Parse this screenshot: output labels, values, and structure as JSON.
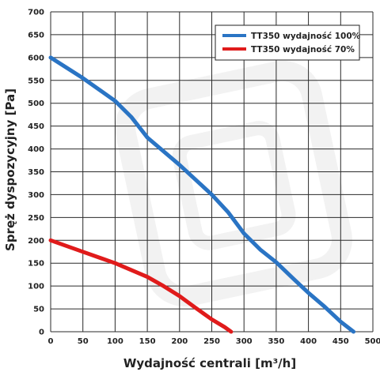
{
  "chart_data": {
    "type": "line",
    "xlabel": "Wydajność centrali [m³/h]",
    "ylabel": "Spręż dyspozycyjny [Pa]",
    "xlim": [
      0,
      500
    ],
    "ylim": [
      0,
      700
    ],
    "x_ticks": [
      "0",
      "50",
      "100",
      "150",
      "200",
      "250",
      "300",
      "350",
      "400",
      "450",
      "500"
    ],
    "y_ticks": [
      "0",
      "50",
      "100",
      "150",
      "200",
      "250",
      "300",
      "350",
      "400",
      "450",
      "500",
      "550",
      "600",
      "650",
      "700"
    ],
    "grid": true,
    "legend_position": "top-right",
    "series": [
      {
        "name": "TT350 wydajność 100%",
        "color": "#2a74c4",
        "points": [
          [
            0,
            600
          ],
          [
            50,
            555
          ],
          [
            100,
            505
          ],
          [
            125,
            470
          ],
          [
            150,
            425
          ],
          [
            200,
            365
          ],
          [
            250,
            300
          ],
          [
            275,
            262
          ],
          [
            300,
            215
          ],
          [
            325,
            180
          ],
          [
            350,
            152
          ],
          [
            375,
            118
          ],
          [
            400,
            85
          ],
          [
            425,
            55
          ],
          [
            450,
            22
          ],
          [
            470,
            0
          ]
        ]
      },
      {
        "name": "TT350 wydajność 70%",
        "color": "#e01b1b",
        "points": [
          [
            0,
            200
          ],
          [
            50,
            175
          ],
          [
            100,
            150
          ],
          [
            150,
            120
          ],
          [
            175,
            100
          ],
          [
            200,
            78
          ],
          [
            225,
            52
          ],
          [
            250,
            27
          ],
          [
            270,
            10
          ],
          [
            280,
            0
          ]
        ]
      }
    ]
  }
}
